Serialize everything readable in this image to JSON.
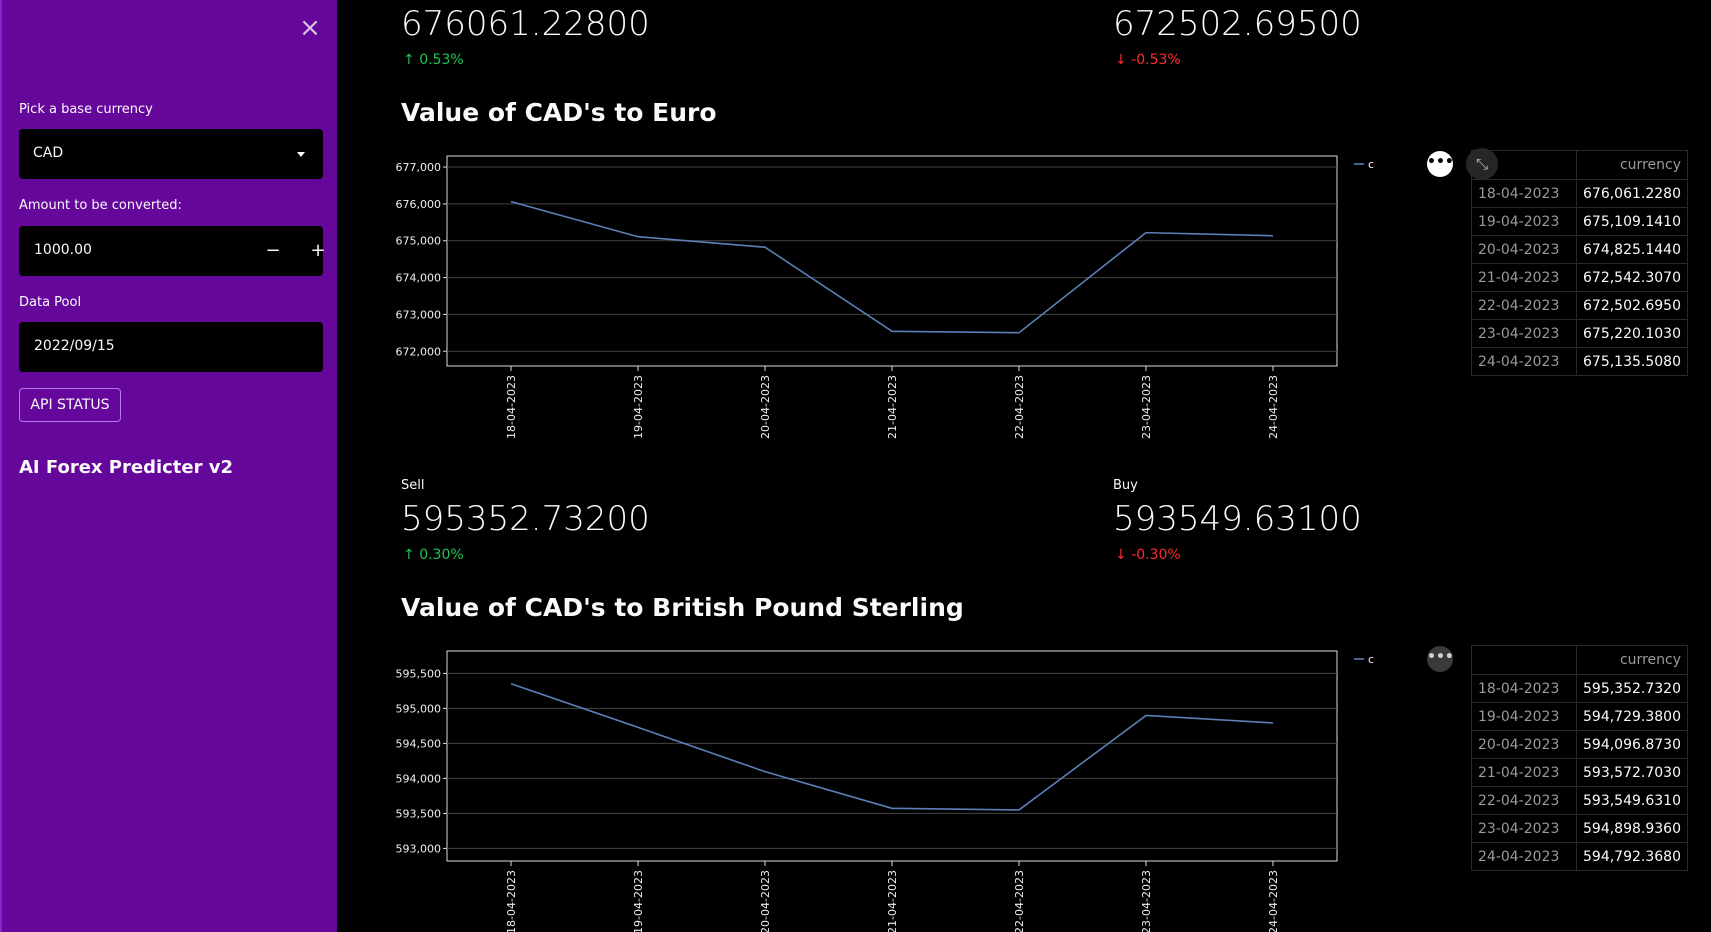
{
  "sidebar": {
    "close_icon": "×",
    "base_currency_label": "Pick a base currency",
    "base_currency_value": "CAD",
    "amount_label": "Amount to be converted:",
    "amount_value": "1000.00",
    "minus": "−",
    "plus": "+",
    "data_pool_label": "Data Pool",
    "data_pool_value": "2022/09/15",
    "api_button": "API STATUS",
    "app_title": "AI Forex Predicter v2"
  },
  "euro": {
    "sell_value": "676061.22800",
    "sell_delta": "0.53%",
    "buy_value": "672502.69500",
    "buy_delta": "-0.53%",
    "title": "Value of CAD's to Euro",
    "legend": "currency",
    "table_header": "currency",
    "rows": [
      {
        "date": "18-04-2023",
        "value": "676,061.2280"
      },
      {
        "date": "19-04-2023",
        "value": "675,109.1410"
      },
      {
        "date": "20-04-2023",
        "value": "674,825.1440"
      },
      {
        "date": "21-04-2023",
        "value": "672,542.3070"
      },
      {
        "date": "22-04-2023",
        "value": "672,502.6950"
      },
      {
        "date": "23-04-2023",
        "value": "675,220.1030"
      },
      {
        "date": "24-04-2023",
        "value": "675,135.5080"
      }
    ]
  },
  "gbp": {
    "sell_label": "Sell",
    "sell_value": "595352.73200",
    "sell_delta": "0.30%",
    "buy_label": "Buy",
    "buy_value": "593549.63100",
    "buy_delta": "-0.30%",
    "title": "Value of CAD's to British Pound Sterling",
    "legend": "currency",
    "table_header": "currency",
    "rows": [
      {
        "date": "18-04-2023",
        "value": "595,352.7320"
      },
      {
        "date": "19-04-2023",
        "value": "594,729.3800"
      },
      {
        "date": "20-04-2023",
        "value": "594,096.8730"
      },
      {
        "date": "21-04-2023",
        "value": "593,572.7030"
      },
      {
        "date": "22-04-2023",
        "value": "593,549.6310"
      },
      {
        "date": "23-04-2023",
        "value": "594,898.9360"
      },
      {
        "date": "24-04-2023",
        "value": "594,792.3680"
      }
    ]
  },
  "icons": {
    "up": "↑",
    "down": "↓",
    "more": "•••",
    "expand": "⤡"
  },
  "colors": {
    "sidebar": "#66079b",
    "line": "#5b7fb8",
    "up": "#21c354",
    "down": "#ff2b2b"
  },
  "chart_data": [
    {
      "type": "line",
      "title": "",
      "x": [
        "18-04-2023",
        "19-04-2023",
        "20-04-2023",
        "21-04-2023",
        "22-04-2023",
        "23-04-2023",
        "24-04-2023"
      ],
      "series": [
        {
          "name": "currency",
          "values": [
            676061.228,
            675109.141,
            674825.144,
            672542.307,
            672502.695,
            675220.103,
            675135.508
          ]
        }
      ],
      "yticks": [
        672000,
        673000,
        674000,
        675000,
        676000,
        677000
      ],
      "ylim": [
        671600,
        677300
      ],
      "grid": true,
      "legend": "top-right"
    },
    {
      "type": "line",
      "title": "",
      "x": [
        "18-04-2023",
        "19-04-2023",
        "20-04-2023",
        "21-04-2023",
        "22-04-2023",
        "23-04-2023",
        "24-04-2023"
      ],
      "series": [
        {
          "name": "currency",
          "values": [
            595352.732,
            594729.38,
            594096.873,
            593572.703,
            593549.631,
            594898.936,
            594792.368
          ]
        }
      ],
      "yticks": [
        593000,
        593500,
        594000,
        594500,
        595000,
        595500
      ],
      "ylim": [
        592820,
        595820
      ],
      "grid": true,
      "legend": "top-right"
    }
  ]
}
